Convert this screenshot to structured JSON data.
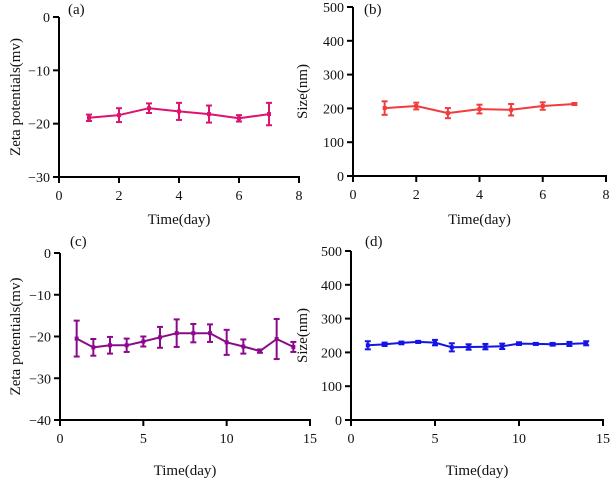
{
  "chart_data": [
    {
      "panel": "(a)",
      "type": "line",
      "title": "",
      "xlabel": "Time(day)",
      "ylabel": "Zeta potentials(mv)",
      "xlim": [
        0,
        8
      ],
      "ylim": [
        -30,
        0
      ],
      "xticks": [
        0,
        2,
        4,
        6,
        8
      ],
      "yticks": [
        0,
        -10,
        -20,
        -30
      ],
      "ytick_labels": [
        "0",
        "−10",
        "−20",
        "−30"
      ],
      "grid": false,
      "color": "#dc1470",
      "series": [
        {
          "name": "Zeta potential",
          "x": [
            1,
            2,
            3,
            4,
            5,
            6,
            7
          ],
          "y": [
            -18.9,
            -18.4,
            -17.1,
            -17.7,
            -18.2,
            -19.0,
            -18.2
          ],
          "error": [
            0.6,
            1.3,
            0.9,
            1.6,
            1.6,
            0.6,
            2.1
          ]
        }
      ]
    },
    {
      "panel": "(b)",
      "type": "line",
      "title": "",
      "xlabel": "Time(day)",
      "ylabel": "Size(nm)",
      "xlim": [
        0,
        8
      ],
      "ylim": [
        0,
        500
      ],
      "xticks": [
        0,
        2,
        4,
        6,
        8
      ],
      "yticks": [
        0,
        100,
        200,
        300,
        400,
        500
      ],
      "ytick_labels": [
        "0",
        "100",
        "200",
        "300",
        "400",
        "500"
      ],
      "grid": false,
      "color": "#f03c3c",
      "series": [
        {
          "name": "Size",
          "x": [
            1,
            2,
            3,
            4,
            5,
            6,
            7
          ],
          "y": [
            201,
            207,
            186,
            198,
            196,
            207,
            213
          ],
          "error": [
            20,
            10,
            15,
            13,
            17,
            11,
            3
          ]
        }
      ]
    },
    {
      "panel": "(c)",
      "type": "line",
      "title": "",
      "xlabel": "Time(day)",
      "ylabel": "Zeta potentials(mv)",
      "xlim": [
        0,
        15
      ],
      "ylim": [
        -40,
        0
      ],
      "xticks": [
        0,
        5,
        10,
        15
      ],
      "yticks": [
        0,
        -10,
        -20,
        -30,
        -40
      ],
      "ytick_labels": [
        "0",
        "−10",
        "−20",
        "−30",
        "−40"
      ],
      "grid": false,
      "color": "#8b0a8b",
      "series": [
        {
          "name": "Zeta potential",
          "x": [
            1,
            2,
            3,
            4,
            5,
            6,
            7,
            8,
            9,
            10,
            11,
            12,
            13,
            14
          ],
          "y": [
            -20.5,
            -22.6,
            -22.1,
            -22.1,
            -21.2,
            -20.2,
            -19.2,
            -19.2,
            -19.2,
            -21.4,
            -22.4,
            -23.5,
            -20.6,
            -22.5
          ],
          "error": [
            4.3,
            2.0,
            2.0,
            1.6,
            1.2,
            2.5,
            3.3,
            2.2,
            2.1,
            3.0,
            1.7,
            0.4,
            4.8,
            1.2
          ]
        }
      ]
    },
    {
      "panel": "(d)",
      "type": "line",
      "title": "",
      "xlabel": "Time(day)",
      "ylabel": "Size(nm)",
      "xlim": [
        0,
        15
      ],
      "ylim": [
        0,
        500
      ],
      "xticks": [
        0,
        5,
        10,
        15
      ],
      "yticks": [
        0,
        100,
        200,
        300,
        400,
        500
      ],
      "ytick_labels": [
        "0",
        "100",
        "200",
        "300",
        "400",
        "500"
      ],
      "grid": false,
      "color": "#1414e6",
      "series": [
        {
          "name": "Size",
          "x": [
            1,
            2,
            3,
            4,
            5,
            6,
            7,
            8,
            9,
            10,
            11,
            12,
            13,
            14
          ],
          "y": [
            221,
            224,
            228,
            231,
            229,
            215,
            216,
            217,
            218,
            226,
            225,
            224,
            225,
            227
          ],
          "error": [
            12,
            5,
            4,
            3,
            8,
            12,
            8,
            8,
            8,
            4,
            3,
            4,
            6,
            6
          ]
        }
      ]
    }
  ]
}
